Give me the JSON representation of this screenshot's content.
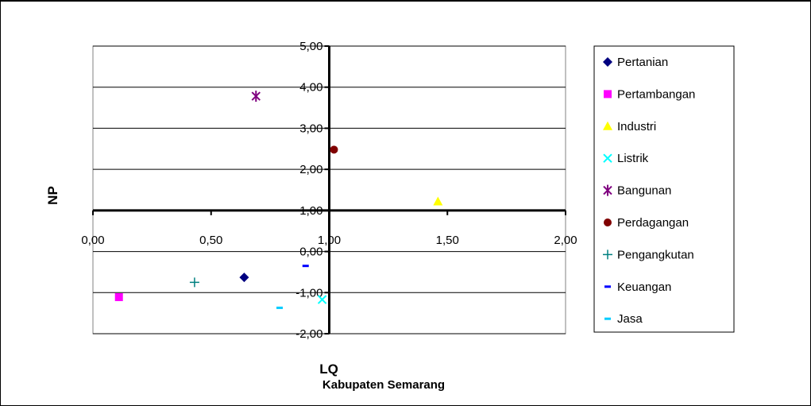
{
  "chart_data": {
    "type": "scatter",
    "title": "",
    "xlabel": "LQ",
    "ylabel": "NP",
    "caption": "Kabupaten Semarang",
    "xlim": [
      0,
      2
    ],
    "ylim": [
      -2,
      5
    ],
    "x_ticks": [
      "0,00",
      "0,50",
      "1,00",
      "1,50",
      "2,00"
    ],
    "y_ticks": [
      "-2,00",
      "-1,00",
      "0,00",
      "1,00",
      "2,00",
      "3,00",
      "4,00",
      "5,00"
    ],
    "axis_crossing": {
      "x": 1,
      "y": 1
    },
    "grid": "horizontal",
    "legend_position": "right",
    "series": [
      {
        "name": "Pertanian",
        "marker": "diamond",
        "color": "#000080",
        "x": [
          0.64
        ],
        "y": [
          -0.63
        ]
      },
      {
        "name": "Pertambangan",
        "marker": "square",
        "color": "#ff00ff",
        "x": [
          0.11
        ],
        "y": [
          -1.11
        ]
      },
      {
        "name": "Industri",
        "marker": "triangle",
        "color": "#ffff00",
        "x": [
          1.46
        ],
        "y": [
          1.22
        ]
      },
      {
        "name": "Listrik",
        "marker": "x",
        "color": "#00ffff",
        "x": [
          0.97
        ],
        "y": [
          -1.17
        ]
      },
      {
        "name": "Bangunan",
        "marker": "star",
        "color": "#800080",
        "x": [
          0.69
        ],
        "y": [
          3.78
        ]
      },
      {
        "name": "Perdagangan",
        "marker": "circle",
        "color": "#800000",
        "x": [
          1.02
        ],
        "y": [
          2.48
        ]
      },
      {
        "name": "Pengangkutan",
        "marker": "plus",
        "color": "#008080",
        "x": [
          0.43
        ],
        "y": [
          -0.75
        ]
      },
      {
        "name": "Keuangan",
        "marker": "dash",
        "color": "#0000ff",
        "x": [
          0.9
        ],
        "y": [
          -0.35
        ]
      },
      {
        "name": "Jasa",
        "marker": "dash",
        "color": "#00ccff",
        "x": [
          0.79
        ],
        "y": [
          -1.37
        ]
      }
    ]
  }
}
